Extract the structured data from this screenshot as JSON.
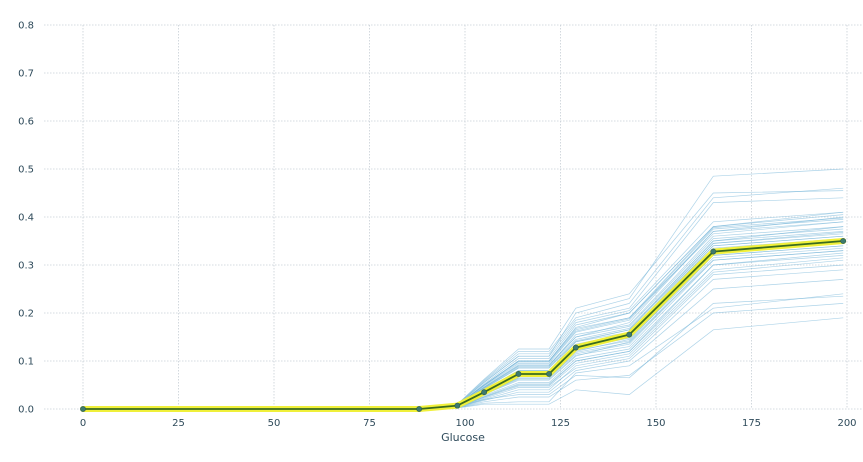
{
  "chart_data": {
    "type": "line",
    "title": "",
    "xlabel": "Glucose",
    "ylabel": "",
    "xlim": [
      -10,
      203
    ],
    "ylim": [
      0,
      0.8
    ],
    "x_ticks": [
      0,
      25,
      50,
      75,
      100,
      125,
      150,
      175,
      200
    ],
    "x_tick_labels": [
      "0",
      "25",
      "50",
      "75",
      "100",
      "125",
      "150",
      "175",
      "200"
    ],
    "y_ticks": [
      0.0,
      0.1,
      0.2,
      0.3,
      0.4,
      0.5,
      0.6,
      0.7,
      0.8
    ],
    "y_tick_labels": [
      "0.0",
      "0.1",
      "0.2",
      "0.3",
      "0.4",
      "0.5",
      "0.6",
      "0.7",
      "0.8"
    ],
    "grid": true,
    "grid_style": "dotted",
    "colors": {
      "ice_lines": "#6aaed6",
      "pdp_line": "#3a6b1f",
      "pdp_halo": "#f0f03a",
      "pdp_markers": "#3d7a6e",
      "grid": "#c8cfd6",
      "tick_text": "#2e4a5a"
    },
    "pdp": {
      "x": [
        0,
        88,
        98,
        105,
        114,
        122,
        129,
        143,
        165,
        199
      ],
      "y": [
        0.0,
        0.0,
        0.007,
        0.035,
        0.073,
        0.073,
        0.128,
        0.155,
        0.328,
        0.35
      ]
    },
    "ice": {
      "x": [
        0,
        88,
        98,
        105,
        114,
        122,
        129,
        143,
        165,
        199
      ],
      "lines": [
        [
          0,
          0,
          0.005,
          0.03,
          0.06,
          0.06,
          0.11,
          0.14,
          0.31,
          0.33
        ],
        [
          0,
          0,
          0.008,
          0.045,
          0.09,
          0.09,
          0.15,
          0.18,
          0.37,
          0.39
        ],
        [
          0,
          0,
          0.004,
          0.02,
          0.04,
          0.04,
          0.09,
          0.11,
          0.28,
          0.3
        ],
        [
          0,
          0,
          0.01,
          0.06,
          0.12,
          0.12,
          0.19,
          0.22,
          0.44,
          0.46
        ],
        [
          0,
          0,
          0.003,
          0.012,
          0.015,
          0.015,
          0.075,
          0.09,
          0.21,
          0.24
        ],
        [
          0,
          0,
          0.006,
          0.04,
          0.08,
          0.08,
          0.13,
          0.16,
          0.34,
          0.36
        ],
        [
          0,
          0,
          0.007,
          0.05,
          0.1,
          0.1,
          0.17,
          0.2,
          0.38,
          0.41
        ],
        [
          0,
          0,
          0.004,
          0.025,
          0.05,
          0.05,
          0.1,
          0.12,
          0.3,
          0.32
        ],
        [
          0,
          0,
          0.009,
          0.055,
          0.11,
          0.11,
          0.2,
          0.23,
          0.485,
          0.5
        ],
        [
          0,
          0,
          0.005,
          0.035,
          0.07,
          0.07,
          0.12,
          0.145,
          0.32,
          0.34
        ],
        [
          0,
          0,
          0.002,
          0.01,
          0.01,
          0.01,
          0.04,
          0.03,
          0.165,
          0.19
        ],
        [
          0,
          0,
          0.006,
          0.042,
          0.085,
          0.085,
          0.14,
          0.165,
          0.35,
          0.38
        ],
        [
          0,
          0,
          0.008,
          0.05,
          0.1,
          0.1,
          0.165,
          0.19,
          0.365,
          0.39
        ],
        [
          0,
          0,
          0.004,
          0.022,
          0.045,
          0.045,
          0.085,
          0.105,
          0.27,
          0.29
        ],
        [
          0,
          0,
          0.01,
          0.062,
          0.125,
          0.125,
          0.21,
          0.24,
          0.45,
          0.455
        ],
        [
          0,
          0,
          0.005,
          0.03,
          0.065,
          0.065,
          0.115,
          0.135,
          0.315,
          0.335
        ],
        [
          0,
          0,
          0.007,
          0.045,
          0.09,
          0.09,
          0.155,
          0.175,
          0.36,
          0.38
        ],
        [
          0,
          0,
          0.003,
          0.018,
          0.035,
          0.035,
          0.08,
          0.1,
          0.25,
          0.27
        ],
        [
          0,
          0,
          0.006,
          0.038,
          0.075,
          0.075,
          0.13,
          0.15,
          0.33,
          0.35
        ],
        [
          0,
          0,
          0.008,
          0.048,
          0.095,
          0.095,
          0.16,
          0.185,
          0.37,
          0.4
        ],
        [
          0,
          0,
          0.005,
          0.028,
          0.055,
          0.055,
          0.105,
          0.125,
          0.3,
          0.325
        ],
        [
          0,
          0,
          0.009,
          0.058,
          0.115,
          0.115,
          0.185,
          0.21,
          0.43,
          0.44
        ],
        [
          0,
          0,
          0.004,
          0.02,
          0.03,
          0.03,
          0.07,
          0.065,
          0.22,
          0.235
        ],
        [
          0,
          0,
          0.006,
          0.04,
          0.08,
          0.08,
          0.14,
          0.16,
          0.345,
          0.365
        ],
        [
          0,
          0,
          0.007,
          0.046,
          0.092,
          0.092,
          0.15,
          0.172,
          0.355,
          0.375
        ],
        [
          0,
          0,
          0.005,
          0.033,
          0.068,
          0.068,
          0.122,
          0.142,
          0.325,
          0.345
        ],
        [
          0,
          0,
          0.008,
          0.052,
          0.105,
          0.105,
          0.175,
          0.2,
          0.38,
          0.405
        ],
        [
          0,
          0,
          0.004,
          0.024,
          0.048,
          0.048,
          0.095,
          0.115,
          0.285,
          0.31
        ],
        [
          0,
          0,
          0.006,
          0.036,
          0.072,
          0.072,
          0.125,
          0.148,
          0.335,
          0.355
        ],
        [
          0,
          0,
          0.007,
          0.044,
          0.088,
          0.088,
          0.145,
          0.168,
          0.35,
          0.37
        ],
        [
          0,
          0,
          0.003,
          0.015,
          0.025,
          0.025,
          0.06,
          0.07,
          0.2,
          0.22
        ],
        [
          0,
          0,
          0.009,
          0.056,
          0.11,
          0.11,
          0.18,
          0.205,
          0.39,
          0.41
        ],
        [
          0,
          0,
          0.005,
          0.032,
          0.064,
          0.064,
          0.118,
          0.138,
          0.32,
          0.34
        ],
        [
          0,
          0,
          0.006,
          0.039,
          0.078,
          0.078,
          0.135,
          0.158,
          0.34,
          0.36
        ],
        [
          0,
          0,
          0.008,
          0.049,
          0.098,
          0.098,
          0.162,
          0.188,
          0.375,
          0.395
        ],
        [
          0,
          0,
          0.004,
          0.026,
          0.052,
          0.052,
          0.1,
          0.12,
          0.29,
          0.315
        ],
        [
          0,
          0,
          0.007,
          0.043,
          0.086,
          0.086,
          0.142,
          0.165,
          0.345,
          0.368
        ],
        [
          0,
          0,
          0.005,
          0.031,
          0.062,
          0.062,
          0.112,
          0.13,
          0.31,
          0.33
        ],
        [
          0,
          0,
          0.006,
          0.037,
          0.074,
          0.074,
          0.128,
          0.15,
          0.33,
          0.352
        ],
        [
          0,
          0,
          0.008,
          0.05,
          0.1,
          0.1,
          0.168,
          0.19,
          0.378,
          0.398
        ]
      ]
    }
  }
}
